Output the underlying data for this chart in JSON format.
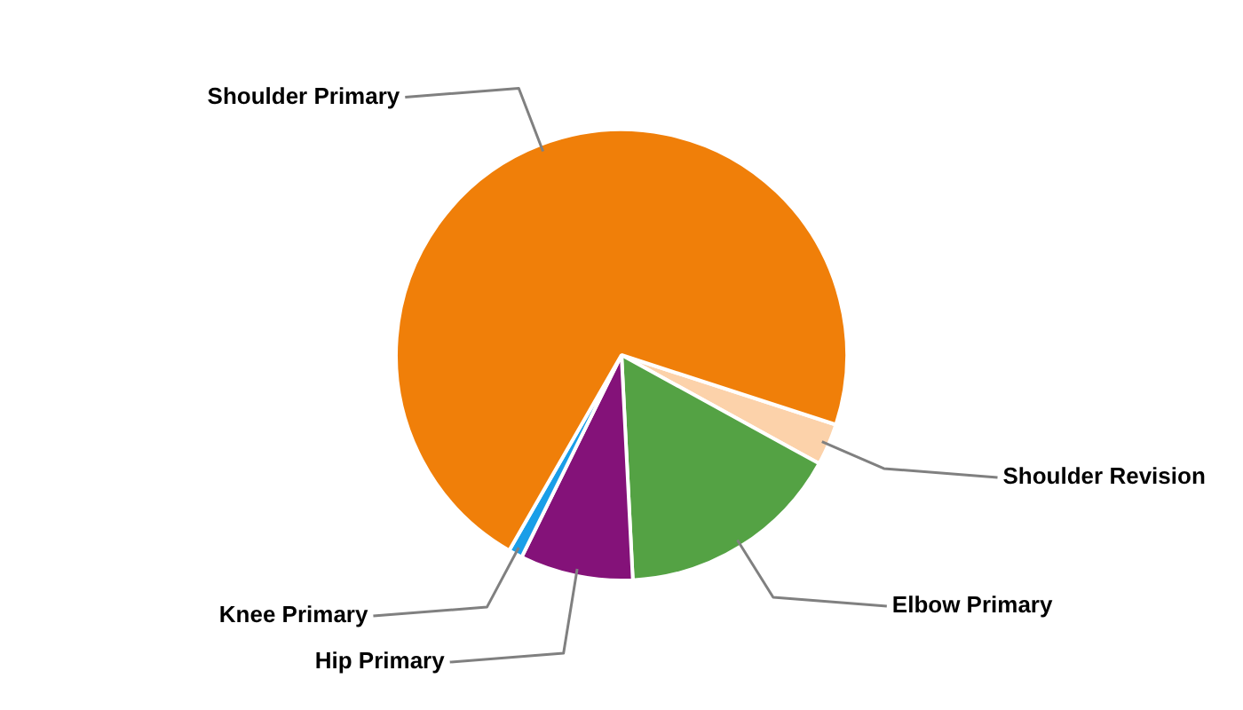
{
  "chart_data": {
    "type": "pie",
    "categories": [
      "Shoulder Revision",
      "Elbow Primary",
      "Hip Primary",
      "Knee Primary",
      "Shoulder Primary"
    ],
    "values": [
      3,
      16.2,
      8.1,
      1,
      71.7
    ],
    "colors": [
      "#fcd2aa",
      "#54a244",
      "#841279",
      "#1a9ee8",
      "#f07f09"
    ],
    "legend": false
  }
}
